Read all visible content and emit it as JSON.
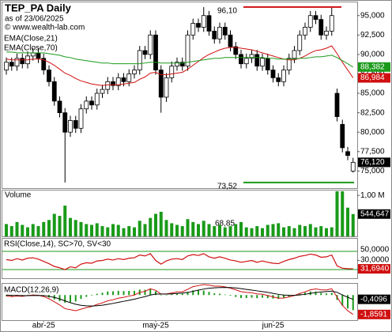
{
  "title": "TEP_PA Daily",
  "subtitle": "as of 23/06/2025",
  "credit": "© www.wealth-lab.com",
  "chart_data": [
    {
      "type": "candlestick",
      "up_color": "#ffffff",
      "down_color": "#000000",
      "categories": [
        null,
        null,
        null,
        null,
        null,
        null,
        null,
        "abr-25",
        null,
        null,
        null,
        null,
        null,
        null,
        null,
        null,
        null,
        null,
        null,
        null,
        null,
        null,
        null,
        null,
        null,
        null,
        null,
        null,
        "may-25",
        null,
        null,
        null,
        null,
        null,
        null,
        null,
        null,
        null,
        null,
        null,
        null,
        null,
        null,
        null,
        null,
        null,
        null,
        null,
        null,
        null,
        "jun-25",
        null,
        null,
        null,
        null,
        null,
        null,
        null,
        null,
        null,
        null,
        null,
        null,
        null,
        null,
        null
      ],
      "open": [
        88.0,
        89.0,
        88.5,
        89.5,
        88.8,
        89.8,
        90.2,
        89.5,
        88.0,
        86.5,
        84.0,
        82.5,
        80.0,
        81.5,
        80.5,
        83.0,
        84.0,
        83.5,
        85.0,
        85.5,
        86.5,
        86.0,
        87.0,
        86.5,
        87.5,
        88.0,
        90.5,
        90.0,
        92.5,
        88.0,
        84.5,
        87.0,
        88.5,
        89.0,
        88.5,
        92.5,
        94.0,
        93.5,
        95.0,
        93.0,
        92.0,
        93.5,
        92.5,
        91.0,
        90.0,
        88.8,
        89.5,
        90.0,
        88.5,
        89.5,
        88.0,
        87.0,
        86.5,
        88.0,
        89.5,
        90.5,
        92.5,
        93.5,
        95.0,
        94.5,
        92.5,
        93.0,
        85.0,
        81.0,
        77.5,
        75.0
      ],
      "high": [
        89.6,
        89.6,
        90.1,
        90.1,
        90.4,
        90.8,
        90.8,
        90.1,
        88.6,
        87.1,
        84.6,
        83.1,
        82.1,
        82.1,
        83.6,
        84.6,
        84.6,
        85.6,
        86.1,
        87.1,
        87.1,
        87.6,
        87.6,
        88.1,
        88.6,
        91.1,
        91.1,
        93.1,
        93.1,
        88.6,
        87.6,
        89.1,
        89.6,
        89.6,
        93.1,
        94.6,
        94.6,
        96.1,
        95.6,
        93.6,
        94.1,
        94.1,
        93.1,
        91.6,
        90.6,
        90.1,
        90.6,
        90.6,
        90.1,
        90.1,
        88.6,
        87.6,
        88.6,
        90.1,
        91.1,
        93.1,
        94.1,
        95.6,
        95.6,
        95.1,
        93.6,
        96.0,
        85.6,
        81.6,
        78.1,
        76.7
      ],
      "low": [
        87.4,
        87.9,
        87.9,
        88.2,
        88.2,
        89.2,
        88.9,
        87.4,
        85.9,
        83.4,
        81.9,
        73.52,
        79.4,
        79.9,
        79.9,
        82.4,
        82.9,
        82.9,
        84.4,
        84.9,
        85.4,
        85.4,
        85.9,
        85.9,
        86.9,
        87.4,
        89.4,
        89.4,
        87.4,
        82.5,
        83.9,
        86.4,
        87.9,
        87.9,
        87.9,
        91.9,
        92.9,
        92.9,
        92.4,
        91.4,
        91.4,
        91.9,
        90.4,
        89.4,
        88.2,
        88.2,
        88.9,
        87.9,
        87.9,
        87.4,
        86.4,
        85.9,
        85.9,
        87.4,
        88.9,
        89.9,
        91.9,
        92.9,
        93.9,
        91.9,
        91.9,
        92.4,
        81.4,
        77.4,
        76.4,
        74.8
      ],
      "close": [
        89.0,
        88.5,
        89.5,
        88.8,
        89.8,
        90.2,
        89.5,
        88.0,
        86.5,
        84.0,
        82.5,
        80.0,
        81.5,
        80.5,
        83.0,
        84.0,
        83.5,
        85.0,
        85.5,
        86.5,
        86.0,
        87.0,
        86.5,
        87.5,
        88.0,
        90.5,
        90.0,
        92.5,
        88.0,
        84.5,
        87.0,
        88.5,
        89.0,
        88.5,
        92.5,
        94.0,
        93.5,
        95.0,
        93.0,
        92.0,
        93.5,
        92.5,
        91.0,
        90.0,
        88.8,
        89.5,
        90.0,
        88.5,
        89.5,
        88.0,
        87.0,
        86.5,
        88.0,
        89.5,
        90.5,
        92.5,
        93.5,
        95.0,
        94.5,
        92.5,
        93.0,
        95.0,
        82.0,
        78.0,
        77.0,
        76.12
      ],
      "series": [
        {
          "name": "EMA(Close,21)",
          "color": "#d01010",
          "values": [
            89.4,
            89.3,
            89.3,
            89.3,
            89.3,
            89.4,
            89.4,
            89.3,
            89.0,
            88.6,
            88.1,
            87.6,
            87.3,
            86.9,
            86.6,
            86.4,
            86.2,
            86.1,
            86.0,
            86.1,
            86.1,
            86.1,
            86.2,
            86.3,
            86.4,
            86.8,
            87.1,
            87.6,
            87.7,
            87.4,
            87.4,
            87.5,
            87.6,
            87.7,
            88.1,
            88.6,
            89.1,
            89.6,
            90.0,
            90.3,
            90.6,
            90.8,
            90.9,
            90.9,
            90.8,
            90.7,
            90.6,
            90.4,
            90.2,
            90.0,
            89.8,
            89.6,
            89.4,
            89.3,
            89.3,
            89.5,
            89.8,
            90.2,
            90.5,
            90.6,
            90.8,
            91.1,
            90.1,
            89.0,
            88.0,
            86.984
          ]
        },
        {
          "name": "EMA(Close,70)",
          "color": "#1a9a1a",
          "values": [
            90.3,
            90.3,
            90.2,
            90.2,
            90.2,
            90.2,
            90.2,
            90.2,
            90.1,
            90.0,
            89.9,
            89.7,
            89.6,
            89.4,
            89.3,
            89.2,
            89.1,
            89.0,
            88.9,
            88.9,
            88.8,
            88.8,
            88.8,
            88.8,
            88.8,
            88.8,
            88.9,
            89.0,
            89.0,
            88.9,
            88.9,
            88.9,
            88.9,
            88.9,
            89.0,
            89.1,
            89.2,
            89.3,
            89.4,
            89.5,
            89.5,
            89.6,
            89.6,
            89.6,
            89.6,
            89.6,
            89.6,
            89.6,
            89.6,
            89.5,
            89.5,
            89.4,
            89.4,
            89.4,
            89.4,
            89.5,
            89.5,
            89.6,
            89.7,
            89.7,
            89.8,
            89.9,
            89.6,
            89.2,
            88.8,
            88.382
          ]
        }
      ],
      "ylim": [
        72.8,
        96.7
      ],
      "yticks": [
        {
          "value": 95,
          "label": "95,000"
        },
        {
          "value": 92.5,
          "label": "92,500"
        },
        {
          "value": 90,
          "label": "90,000"
        },
        {
          "value": 87.5,
          "label": "87,500"
        },
        {
          "value": 85,
          "label": "85,000"
        },
        {
          "value": 82.5,
          "label": "82,500"
        },
        {
          "value": 80,
          "label": "80,000"
        },
        {
          "value": 77.5,
          "label": "77,500"
        },
        {
          "value": 75,
          "label": "75,000"
        }
      ],
      "end_labels": [
        {
          "value": 88.382,
          "label": "88,382",
          "color": "#1a9a1a"
        },
        {
          "value": 86.984,
          "label": "86,984",
          "color": "#d01010"
        },
        {
          "value": 76.12,
          "label": "76,120",
          "color": "#000000"
        }
      ],
      "annotations": [
        {
          "value": 96.1,
          "label": "96,10",
          "color": "#d01010"
        },
        {
          "value": 73.52,
          "label": "73,52",
          "color": "#1a9a1a"
        }
      ],
      "grid": false
    },
    {
      "type": "bar",
      "title": "Volume",
      "color": "#1a9a1a",
      "annotation": "68,85",
      "values": [
        0.3,
        0.25,
        0.35,
        0.28,
        0.22,
        0.3,
        0.25,
        0.35,
        0.4,
        0.55,
        0.5,
        0.75,
        0.45,
        0.4,
        0.35,
        0.3,
        0.28,
        0.32,
        0.25,
        0.22,
        0.3,
        0.28,
        0.2,
        0.25,
        0.22,
        0.38,
        0.3,
        0.45,
        0.55,
        0.6,
        0.4,
        0.32,
        0.28,
        0.25,
        0.42,
        0.35,
        0.3,
        0.38,
        0.3,
        0.25,
        0.28,
        0.22,
        0.25,
        0.3,
        0.35,
        0.22,
        0.2,
        0.25,
        0.2,
        0.28,
        0.3,
        0.32,
        0.22,
        0.25,
        0.2,
        0.28,
        0.25,
        0.3,
        0.22,
        0.25,
        0.2,
        0.22,
        1.1,
        1.1,
        0.7,
        0.544647
      ],
      "ylim": [
        0,
        1.1
      ],
      "yticks": [
        {
          "value": 1.0,
          "label": "1,00 M"
        }
      ],
      "end_labels": [
        {
          "value": 0.544647,
          "label": "544,647",
          "color": "#000000"
        }
      ]
    },
    {
      "type": "line",
      "title": "RSI(Close,14), SC>70, SV<30",
      "levels": [
        70,
        30
      ],
      "level_color": "#1a9a1a",
      "series": [
        {
          "color": "#d01010",
          "values": [
            52,
            50,
            54,
            51,
            55,
            56,
            53,
            48,
            43,
            37,
            34,
            30,
            36,
            34,
            42,
            45,
            44,
            49,
            50,
            53,
            51,
            54,
            52,
            55,
            56,
            62,
            60,
            65,
            50,
            42,
            49,
            53,
            54,
            52,
            60,
            63,
            61,
            65,
            58,
            55,
            58,
            55,
            51,
            49,
            46,
            48,
            50,
            46,
            49,
            46,
            44,
            43,
            48,
            52,
            55,
            59,
            61,
            64,
            62,
            57,
            58,
            62,
            38,
            33,
            32,
            31.694
          ]
        }
      ],
      "ylim": [
        11,
        96
      ],
      "yticks": [
        {
          "value": 50,
          "label": "50,0000"
        },
        {
          "value": 30,
          "label": "30,0000"
        }
      ],
      "end_labels": [
        {
          "value": 31.694,
          "label": "31,6940",
          "color": "#d01010"
        }
      ]
    },
    {
      "type": "macd",
      "title": "MACD(12,26,9)",
      "histogram": {
        "color": "#1a9a1a",
        "values": [
          -0.1,
          -0.12,
          -0.06,
          -0.06,
          0.01,
          0.05,
          0.02,
          -0.09,
          -0.23,
          -0.42,
          -0.58,
          -0.74,
          -0.67,
          -0.62,
          -0.37,
          -0.17,
          -0.05,
          0.12,
          0.22,
          0.34,
          0.35,
          0.4,
          0.38,
          0.4,
          0.4,
          0.52,
          0.5,
          0.6,
          0.36,
          0.01,
          0.01,
          0.09,
          0.15,
          0.12,
          0.3,
          0.44,
          0.43,
          0.43,
          0.3,
          0.16,
          0.13,
          0.05,
          -0.07,
          -0.18,
          -0.29,
          -0.29,
          -0.25,
          -0.3,
          -0.25,
          -0.3,
          -0.34,
          -0.37,
          -0.28,
          -0.15,
          -0.02,
          0.14,
          0.23,
          0.34,
          0.34,
          0.21,
          0.15,
          0.22,
          -0.46,
          -1.01,
          -1.28,
          -1.45
        ]
      },
      "series": [
        {
          "color": "#d01010",
          "values": [
            -0.1,
            -0.15,
            -0.1,
            -0.12,
            -0.05,
            0.0,
            -0.02,
            -0.15,
            -0.35,
            -0.65,
            -0.95,
            -1.3,
            -1.4,
            -1.5,
            -1.35,
            -1.2,
            -1.1,
            -0.9,
            -0.75,
            -0.55,
            -0.45,
            -0.3,
            -0.22,
            -0.1,
            0.0,
            0.25,
            0.35,
            0.6,
            0.45,
            0.1,
            0.1,
            0.2,
            0.3,
            0.3,
            0.55,
            0.8,
            0.9,
            1.0,
            0.95,
            0.85,
            0.85,
            0.78,
            0.65,
            0.5,
            0.32,
            0.25,
            0.22,
            0.1,
            0.08,
            -0.05,
            -0.18,
            -0.3,
            -0.28,
            -0.18,
            -0.05,
            0.15,
            0.3,
            0.5,
            0.58,
            0.5,
            0.48,
            0.6,
            -0.2,
            -1.0,
            -1.5,
            -1.8591
          ]
        },
        {
          "color": "#000000",
          "values": [
            0.0,
            -0.03,
            -0.04,
            -0.06,
            -0.06,
            -0.05,
            -0.04,
            -0.06,
            -0.12,
            -0.23,
            -0.37,
            -0.56,
            -0.73,
            -0.88,
            -0.98,
            -1.03,
            -1.05,
            -1.02,
            -0.97,
            -0.89,
            -0.8,
            -0.7,
            -0.6,
            -0.5,
            -0.4,
            -0.27,
            -0.15,
            0.0,
            0.09,
            0.09,
            0.09,
            0.11,
            0.15,
            0.18,
            0.25,
            0.36,
            0.47,
            0.57,
            0.65,
            0.69,
            0.72,
            0.73,
            0.72,
            0.68,
            0.61,
            0.54,
            0.47,
            0.4,
            0.33,
            0.25,
            0.16,
            0.07,
            0.0,
            -0.03,
            -0.03,
            0.01,
            0.07,
            0.16,
            0.24,
            0.29,
            0.33,
            0.38,
            0.26,
            0.01,
            -0.22,
            -0.4096
          ]
        }
      ],
      "ylim": [
        -2.4,
        1.0
      ],
      "yticks": [],
      "end_labels": [
        {
          "value": -0.4096,
          "label": "-0,4096",
          "color": "#000000"
        },
        {
          "value": -1.8591,
          "label": "-1,8591",
          "color": "#d01010"
        }
      ]
    }
  ]
}
